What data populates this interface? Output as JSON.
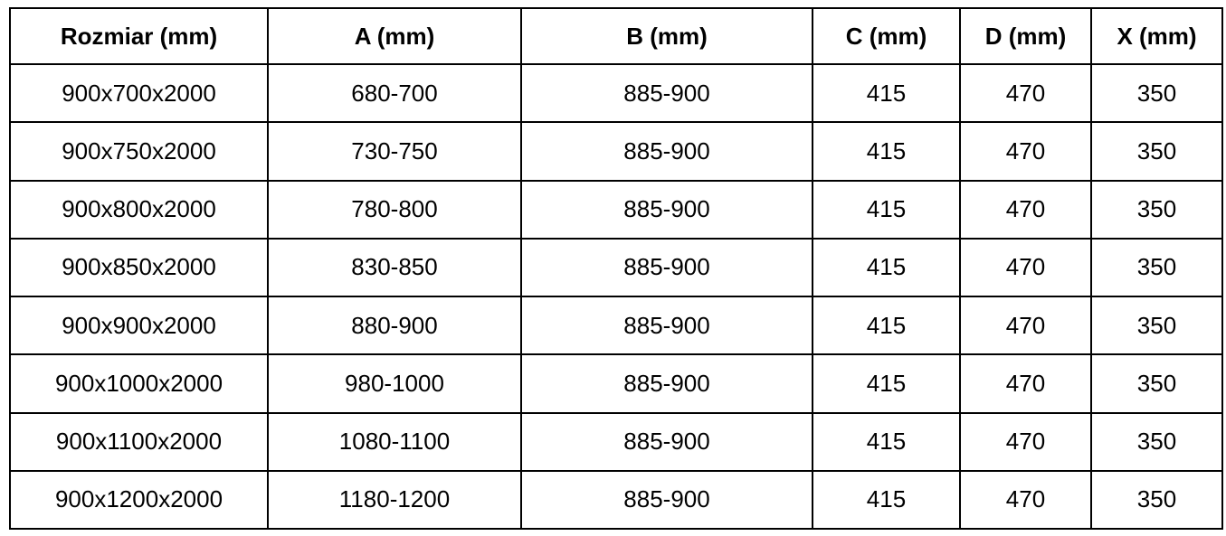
{
  "colors": {
    "background": "#ffffff",
    "border": "#000000",
    "text": "#000000"
  },
  "chart_data": {
    "type": "table",
    "columns": [
      "Rozmiar (mm)",
      "A (mm)",
      "B (mm)",
      "C (mm)",
      "D (mm)",
      "X (mm)"
    ],
    "rows": [
      [
        "900x700x2000",
        "680-700",
        "885-900",
        "415",
        "470",
        "350"
      ],
      [
        "900x750x2000",
        "730-750",
        "885-900",
        "415",
        "470",
        "350"
      ],
      [
        "900x800x2000",
        "780-800",
        "885-900",
        "415",
        "470",
        "350"
      ],
      [
        "900x850x2000",
        "830-850",
        "885-900",
        "415",
        "470",
        "350"
      ],
      [
        "900x900x2000",
        "880-900",
        "885-900",
        "415",
        "470",
        "350"
      ],
      [
        "900x1000x2000",
        "980-1000",
        "885-900",
        "415",
        "470",
        "350"
      ],
      [
        "900x1100x2000",
        "1080-1100",
        "885-900",
        "415",
        "470",
        "350"
      ],
      [
        "900x1200x2000",
        "1180-1200",
        "885-900",
        "415",
        "470",
        "350"
      ]
    ]
  }
}
